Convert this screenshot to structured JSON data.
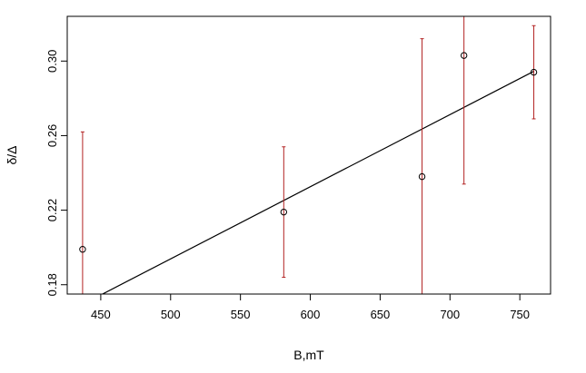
{
  "chart_data": {
    "type": "scatter",
    "title": "",
    "xlabel": "B,mT",
    "ylabel": "δ/Δ",
    "xlim": [
      426,
      772
    ],
    "ylim": [
      0.175,
      0.324
    ],
    "x_ticks": [
      450,
      500,
      550,
      600,
      650,
      700,
      750
    ],
    "y_ticks": [
      0.18,
      0.22,
      0.26,
      0.3
    ],
    "x_tick_labels": [
      "450",
      "500",
      "550",
      "600",
      "650",
      "700",
      "750"
    ],
    "y_tick_labels": [
      "0.18",
      "0.22",
      "0.26",
      "0.30"
    ],
    "grid": false,
    "legend": "none",
    "points": [
      {
        "x": 437,
        "y": 0.199,
        "err_low": 0.135,
        "err_high": 0.262
      },
      {
        "x": 581,
        "y": 0.219,
        "err_low": 0.184,
        "err_high": 0.254
      },
      {
        "x": 680,
        "y": 0.238,
        "err_low": 0.164,
        "err_high": 0.312
      },
      {
        "x": 710,
        "y": 0.303,
        "err_low": 0.234,
        "err_high": 0.372
      },
      {
        "x": 760,
        "y": 0.294,
        "err_low": 0.269,
        "err_high": 0.319
      }
    ],
    "fit_line": {
      "x": [
        450,
        760
      ],
      "y": [
        0.1745,
        0.2945
      ]
    },
    "colors": {
      "points": "#000000",
      "error_bars": "#b22222",
      "fit_line": "#000000"
    }
  }
}
